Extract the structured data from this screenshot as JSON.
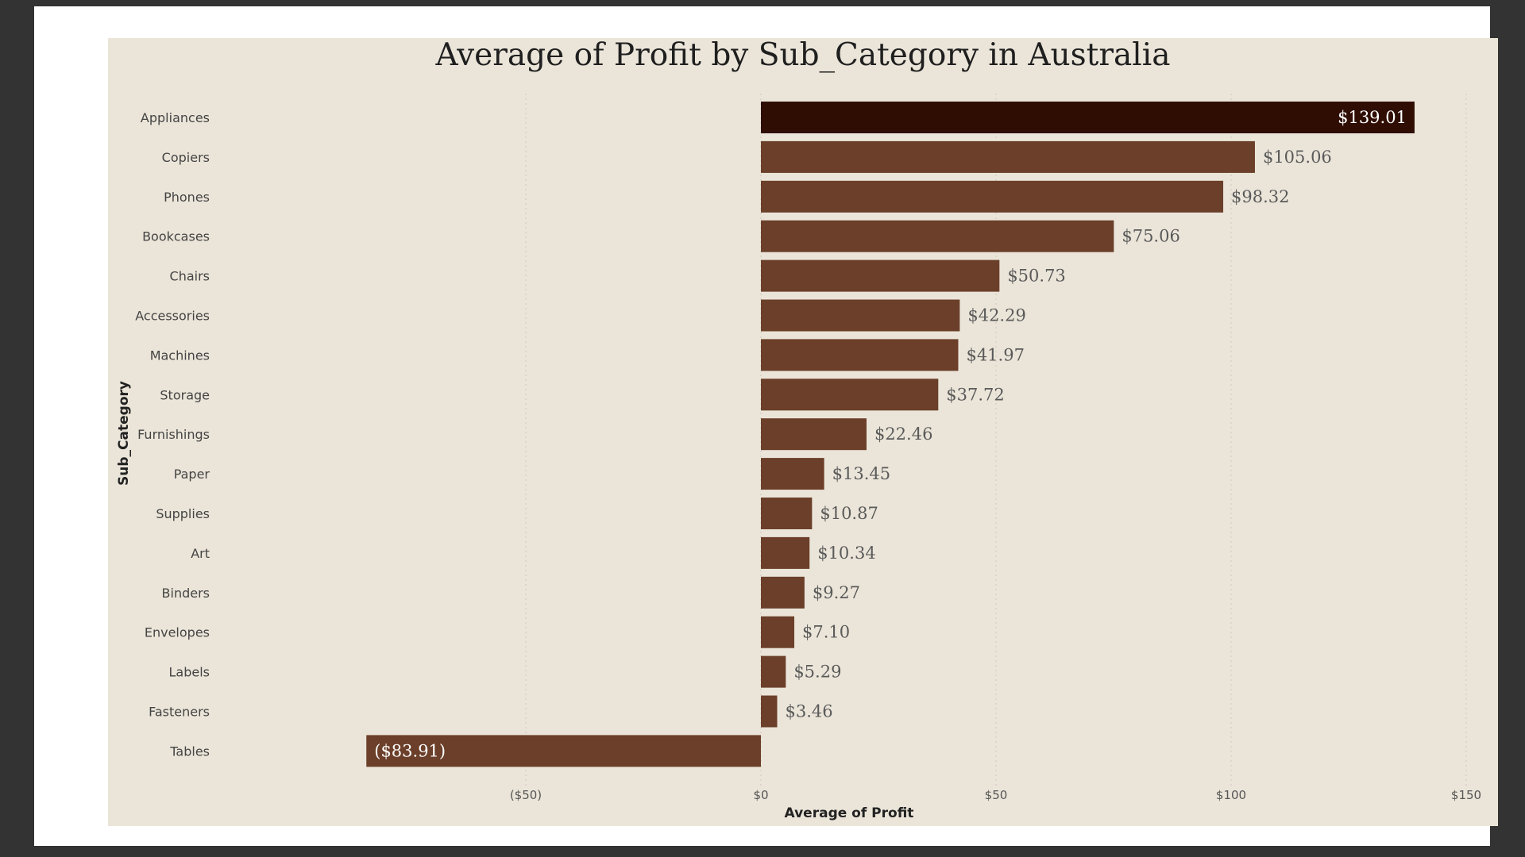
{
  "chart_data": {
    "type": "bar",
    "orientation": "horizontal",
    "title": "Average of Profit by Sub_Category in Australia",
    "xlabel": "Average of Profit",
    "ylabel": "Sub_Category",
    "xlim": [
      -100,
      150
    ],
    "xticks": [
      -50,
      0,
      50,
      100,
      150
    ],
    "xtick_labels": [
      "($50)",
      "$0",
      "$50",
      "$100",
      "$150"
    ],
    "grid": true,
    "categories": [
      "Appliances",
      "Copiers",
      "Phones",
      "Bookcases",
      "Chairs",
      "Accessories",
      "Machines",
      "Storage",
      "Furnishings",
      "Paper",
      "Supplies",
      "Art",
      "Binders",
      "Envelopes",
      "Labels",
      "Fasteners",
      "Tables"
    ],
    "values": [
      139.01,
      105.06,
      98.32,
      75.06,
      50.73,
      42.29,
      41.97,
      37.72,
      22.46,
      13.45,
      10.87,
      10.34,
      9.27,
      7.1,
      5.29,
      3.46,
      -83.91
    ],
    "data_labels": [
      "$139.01",
      "$105.06",
      "$98.32",
      "$75.06",
      "$50.73",
      "$42.29",
      "$41.97",
      "$37.72",
      "$22.46",
      "$13.45",
      "$10.87",
      "$10.34",
      "$9.27",
      "$7.10",
      "$5.29",
      "$3.46",
      "($83.91)"
    ],
    "colors": {
      "bar": "#6b3f29",
      "highlight_bar": "#2f0d02",
      "background": "#ebe5d9",
      "gridline": "#cfc8ba"
    }
  }
}
